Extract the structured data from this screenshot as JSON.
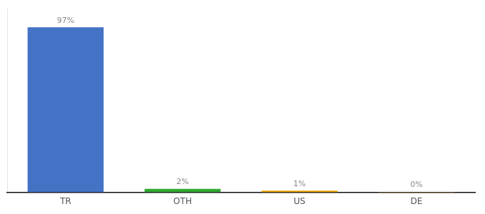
{
  "chart_data": {
    "type": "bar",
    "categories": [
      "TR",
      "OTH",
      "US",
      "DE"
    ],
    "values": [
      97,
      2,
      1,
      0.3
    ],
    "value_labels": [
      "97%",
      "2%",
      "1%",
      "0%"
    ],
    "colors": [
      "#4472c4",
      "#33a832",
      "#f0a500",
      "#f0a500"
    ],
    "ylim": [
      0,
      108
    ],
    "grid": false,
    "data_labels": true,
    "tick_labels": "x"
  }
}
